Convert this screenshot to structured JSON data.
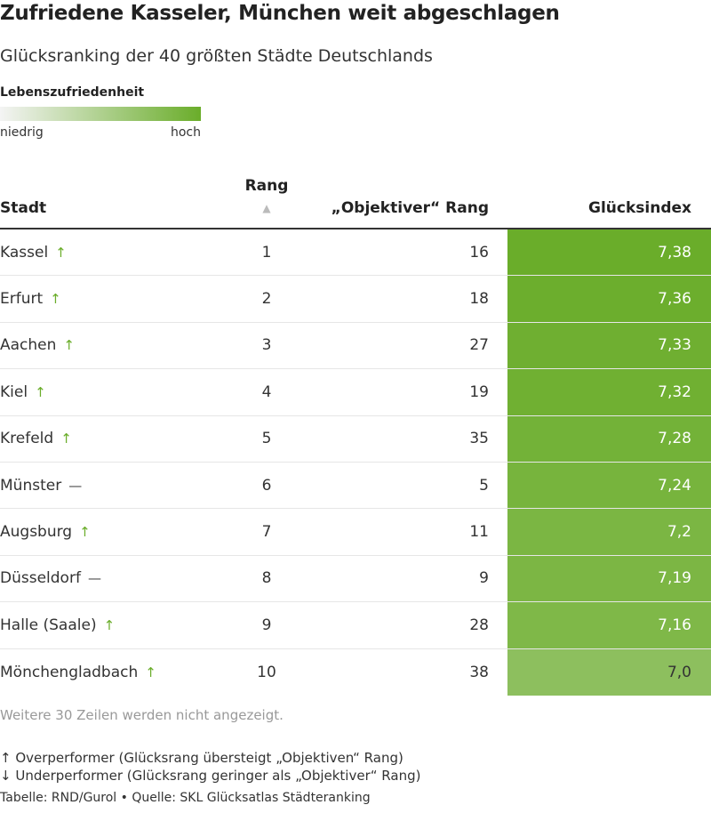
{
  "header": {
    "title": "Zufriedene Kasseler, München weit abgeschlagen",
    "subtitle": "Glücksranking der 40 größten Städte Deutschlands"
  },
  "legend": {
    "title": "Lebenszufriedenheit",
    "low_label": "niedrig",
    "high_label": "hoch",
    "color_low": "#f4f4f4",
    "color_high": "#6aad2a"
  },
  "table": {
    "columns": {
      "stadt": "Stadt",
      "rang": "Rang",
      "objektiver_rang": "„Objektiver“ Rang",
      "gluecksindex": "Glücksindex"
    },
    "sort_icon": "▲",
    "trend_symbols": {
      "up": "↑",
      "flat": "—"
    },
    "rows": [
      {
        "stadt": "Kassel",
        "trend": "up",
        "rang": "1",
        "objektiver_rang": "16",
        "gluecksindex": "7,38",
        "value": 7.38
      },
      {
        "stadt": "Erfurt",
        "trend": "up",
        "rang": "2",
        "objektiver_rang": "18",
        "gluecksindex": "7,36",
        "value": 7.36
      },
      {
        "stadt": "Aachen",
        "trend": "up",
        "rang": "3",
        "objektiver_rang": "27",
        "gluecksindex": "7,33",
        "value": 7.33
      },
      {
        "stadt": "Kiel",
        "trend": "up",
        "rang": "4",
        "objektiver_rang": "19",
        "gluecksindex": "7,32",
        "value": 7.32
      },
      {
        "stadt": "Krefeld",
        "trend": "up",
        "rang": "5",
        "objektiver_rang": "35",
        "gluecksindex": "7,28",
        "value": 7.28
      },
      {
        "stadt": "Münster",
        "trend": "flat",
        "rang": "6",
        "objektiver_rang": "5",
        "gluecksindex": "7,24",
        "value": 7.24
      },
      {
        "stadt": "Augsburg",
        "trend": "up",
        "rang": "7",
        "objektiver_rang": "11",
        "gluecksindex": "7,2",
        "value": 7.2
      },
      {
        "stadt": "Düsseldorf",
        "trend": "flat",
        "rang": "8",
        "objektiver_rang": "9",
        "gluecksindex": "7,19",
        "value": 7.19
      },
      {
        "stadt": "Halle (Saale)",
        "trend": "up",
        "rang": "9",
        "objektiver_rang": "28",
        "gluecksindex": "7,16",
        "value": 7.16
      },
      {
        "stadt": "Mönchengladbach",
        "trend": "up",
        "rang": "10",
        "objektiver_rang": "38",
        "gluecksindex": "7,0",
        "value": 7.0
      }
    ]
  },
  "notes": {
    "more_rows": "Weitere 30 Zeilen werden nicht angezeigt.",
    "overperformer": "↑ Overperformer (Glücksrang übersteigt „Objektiven“ Rang)",
    "underperformer": "↓ Underperformer (Glücksrang geringer als „Objektiver“ Rang)",
    "footer": "Tabelle: RND/Gurol • Quelle: SKL Glücksatlas Städteranking"
  },
  "chart_data": {
    "type": "table",
    "title": "Zufriedene Kasseler, München weit abgeschlagen",
    "subtitle": "Glücksranking der 40 größten Städte Deutschlands",
    "columns": [
      "Stadt",
      "Rang",
      "„Objektiver“ Rang",
      "Glücksindex"
    ],
    "categories": [
      "Kassel",
      "Erfurt",
      "Aachen",
      "Kiel",
      "Krefeld",
      "Münster",
      "Augsburg",
      "Düsseldorf",
      "Halle (Saale)",
      "Mönchengladbach"
    ],
    "series": [
      {
        "name": "Rang",
        "values": [
          1,
          2,
          3,
          4,
          5,
          6,
          7,
          8,
          9,
          10
        ]
      },
      {
        "name": "„Objektiver“ Rang",
        "values": [
          16,
          18,
          27,
          19,
          35,
          5,
          11,
          9,
          28,
          38
        ]
      },
      {
        "name": "Glücksindex",
        "values": [
          7.38,
          7.36,
          7.33,
          7.32,
          7.28,
          7.24,
          7.2,
          7.19,
          7.16,
          7.0
        ]
      }
    ],
    "trend": [
      "up",
      "up",
      "up",
      "up",
      "up",
      "flat",
      "up",
      "flat",
      "up",
      "up"
    ],
    "color_scale": {
      "low": "#f4f4f4",
      "high": "#6aad2a",
      "domain": [
        5.9,
        7.38
      ]
    }
  }
}
